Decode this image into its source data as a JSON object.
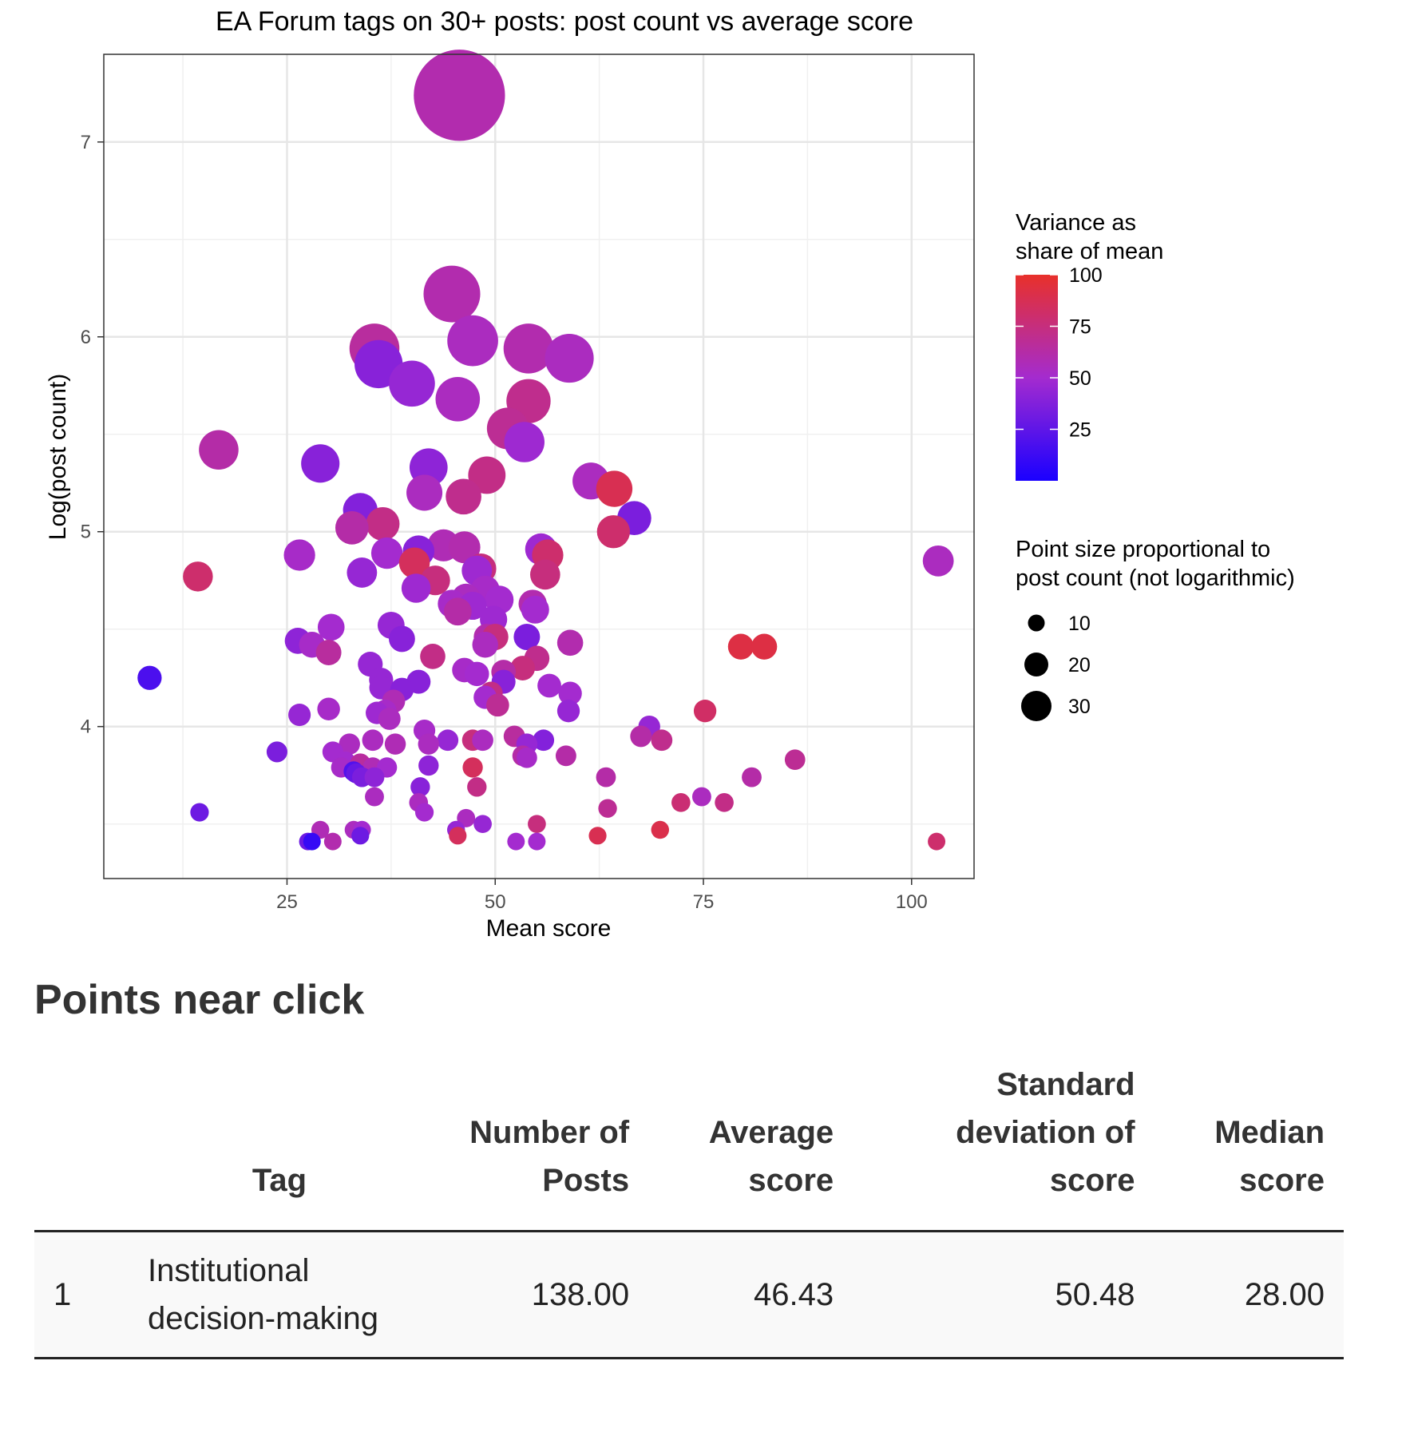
{
  "chart_data": {
    "type": "scatter",
    "title": "EA Forum tags on 30+ posts: post count vs average score",
    "xlabel": "Mean score",
    "ylabel": "Log(post count)",
    "xlim": [
      3,
      107.5
    ],
    "ylim": [
      3.22,
      7.45
    ],
    "xticks": [
      25,
      50,
      75,
      100
    ],
    "yticks": [
      4,
      5,
      6,
      7
    ],
    "grid": true,
    "color_legend": {
      "title": "Variance as share of mean",
      "ticks": [
        25,
        50,
        75,
        100
      ],
      "low_color": "#1a00ff",
      "mid_color": "#a42bcf",
      "high_color": "#e8302a",
      "range": [
        0,
        100
      ]
    },
    "size_legend": {
      "title": "Point size proportional to post count (not logarithmic)",
      "entries": [
        10,
        20,
        30
      ]
    },
    "points": [
      {
        "x": 45.7,
        "y": 7.24,
        "c": 60
      },
      {
        "x": 44.8,
        "y": 6.22,
        "c": 60
      },
      {
        "x": 47.3,
        "y": 5.98,
        "c": 55
      },
      {
        "x": 35.5,
        "y": 5.94,
        "c": 65
      },
      {
        "x": 54.0,
        "y": 5.94,
        "c": 60
      },
      {
        "x": 36.0,
        "y": 5.86,
        "c": 40
      },
      {
        "x": 58.9,
        "y": 5.89,
        "c": 55
      },
      {
        "x": 40.0,
        "y": 5.76,
        "c": 45
      },
      {
        "x": 45.5,
        "y": 5.68,
        "c": 55
      },
      {
        "x": 54.0,
        "y": 5.67,
        "c": 70
      },
      {
        "x": 51.5,
        "y": 5.53,
        "c": 68
      },
      {
        "x": 53.5,
        "y": 5.46,
        "c": 48
      },
      {
        "x": 16.8,
        "y": 5.42,
        "c": 62
      },
      {
        "x": 29.0,
        "y": 5.35,
        "c": 40
      },
      {
        "x": 42.0,
        "y": 5.33,
        "c": 42
      },
      {
        "x": 49.0,
        "y": 5.29,
        "c": 72
      },
      {
        "x": 61.5,
        "y": 5.26,
        "c": 55
      },
      {
        "x": 64.3,
        "y": 5.22,
        "c": 88
      },
      {
        "x": 41.5,
        "y": 5.2,
        "c": 55
      },
      {
        "x": 46.2,
        "y": 5.18,
        "c": 70
      },
      {
        "x": 33.8,
        "y": 5.11,
        "c": 38
      },
      {
        "x": 66.7,
        "y": 5.07,
        "c": 35
      },
      {
        "x": 36.5,
        "y": 5.04,
        "c": 72
      },
      {
        "x": 32.8,
        "y": 5.02,
        "c": 62
      },
      {
        "x": 64.2,
        "y": 5.0,
        "c": 80
      },
      {
        "x": 43.8,
        "y": 4.93,
        "c": 58
      },
      {
        "x": 46.3,
        "y": 4.92,
        "c": 60
      },
      {
        "x": 40.8,
        "y": 4.9,
        "c": 40
      },
      {
        "x": 55.5,
        "y": 4.91,
        "c": 48
      },
      {
        "x": 26.5,
        "y": 4.88,
        "c": 52
      },
      {
        "x": 37.0,
        "y": 4.89,
        "c": 50
      },
      {
        "x": 56.3,
        "y": 4.88,
        "c": 80
      },
      {
        "x": 103.2,
        "y": 4.85,
        "c": 55
      },
      {
        "x": 40.3,
        "y": 4.84,
        "c": 85
      },
      {
        "x": 48.3,
        "y": 4.81,
        "c": 75
      },
      {
        "x": 47.8,
        "y": 4.8,
        "c": 48
      },
      {
        "x": 14.3,
        "y": 4.77,
        "c": 80
      },
      {
        "x": 34.0,
        "y": 4.79,
        "c": 45
      },
      {
        "x": 56.0,
        "y": 4.78,
        "c": 75
      },
      {
        "x": 42.8,
        "y": 4.75,
        "c": 75
      },
      {
        "x": 40.5,
        "y": 4.71,
        "c": 48
      },
      {
        "x": 48.8,
        "y": 4.7,
        "c": 52
      },
      {
        "x": 46.5,
        "y": 4.66,
        "c": 55
      },
      {
        "x": 50.5,
        "y": 4.65,
        "c": 50
      },
      {
        "x": 44.8,
        "y": 4.63,
        "c": 52
      },
      {
        "x": 54.5,
        "y": 4.63,
        "c": 60
      },
      {
        "x": 47.3,
        "y": 4.62,
        "c": 48
      },
      {
        "x": 45.5,
        "y": 4.59,
        "c": 62
      },
      {
        "x": 54.8,
        "y": 4.6,
        "c": 50
      },
      {
        "x": 49.8,
        "y": 4.55,
        "c": 48
      },
      {
        "x": 37.5,
        "y": 4.52,
        "c": 45
      },
      {
        "x": 30.3,
        "y": 4.51,
        "c": 50
      },
      {
        "x": 49.0,
        "y": 4.46,
        "c": 60
      },
      {
        "x": 50.0,
        "y": 4.46,
        "c": 75
      },
      {
        "x": 38.8,
        "y": 4.45,
        "c": 40
      },
      {
        "x": 26.3,
        "y": 4.44,
        "c": 42
      },
      {
        "x": 53.8,
        "y": 4.46,
        "c": 35
      },
      {
        "x": 59.0,
        "y": 4.43,
        "c": 60
      },
      {
        "x": 28.0,
        "y": 4.42,
        "c": 52
      },
      {
        "x": 48.8,
        "y": 4.42,
        "c": 55
      },
      {
        "x": 79.5,
        "y": 4.41,
        "c": 92
      },
      {
        "x": 82.3,
        "y": 4.41,
        "c": 92
      },
      {
        "x": 30.0,
        "y": 4.38,
        "c": 65
      },
      {
        "x": 42.5,
        "y": 4.36,
        "c": 72
      },
      {
        "x": 55.0,
        "y": 4.35,
        "c": 70
      },
      {
        "x": 35.0,
        "y": 4.32,
        "c": 45
      },
      {
        "x": 53.3,
        "y": 4.3,
        "c": 75
      },
      {
        "x": 51.0,
        "y": 4.28,
        "c": 62
      },
      {
        "x": 46.3,
        "y": 4.29,
        "c": 52
      },
      {
        "x": 47.8,
        "y": 4.27,
        "c": 50
      },
      {
        "x": 8.5,
        "y": 4.25,
        "c": 18
      },
      {
        "x": 36.3,
        "y": 4.24,
        "c": 45
      },
      {
        "x": 40.8,
        "y": 4.23,
        "c": 40
      },
      {
        "x": 51.0,
        "y": 4.23,
        "c": 40
      },
      {
        "x": 56.5,
        "y": 4.21,
        "c": 50
      },
      {
        "x": 36.3,
        "y": 4.2,
        "c": 45
      },
      {
        "x": 38.8,
        "y": 4.19,
        "c": 40
      },
      {
        "x": 59.0,
        "y": 4.17,
        "c": 50
      },
      {
        "x": 49.5,
        "y": 4.17,
        "c": 72
      },
      {
        "x": 48.8,
        "y": 4.15,
        "c": 50
      },
      {
        "x": 37.8,
        "y": 4.13,
        "c": 58
      },
      {
        "x": 50.3,
        "y": 4.11,
        "c": 68
      },
      {
        "x": 30.0,
        "y": 4.09,
        "c": 52
      },
      {
        "x": 35.8,
        "y": 4.07,
        "c": 48
      },
      {
        "x": 36.8,
        "y": 4.08,
        "c": 52
      },
      {
        "x": 75.2,
        "y": 4.08,
        "c": 82
      },
      {
        "x": 58.8,
        "y": 4.08,
        "c": 45
      },
      {
        "x": 26.5,
        "y": 4.06,
        "c": 45
      },
      {
        "x": 37.3,
        "y": 4.04,
        "c": 55
      },
      {
        "x": 68.5,
        "y": 4.0,
        "c": 45
      },
      {
        "x": 41.5,
        "y": 3.98,
        "c": 52
      },
      {
        "x": 67.5,
        "y": 3.95,
        "c": 62
      },
      {
        "x": 52.3,
        "y": 3.95,
        "c": 65
      },
      {
        "x": 70.0,
        "y": 3.93,
        "c": 70
      },
      {
        "x": 35.3,
        "y": 3.93,
        "c": 55
      },
      {
        "x": 44.3,
        "y": 3.93,
        "c": 45
      },
      {
        "x": 47.3,
        "y": 3.93,
        "c": 75
      },
      {
        "x": 48.5,
        "y": 3.93,
        "c": 55
      },
      {
        "x": 55.8,
        "y": 3.93,
        "c": 38
      },
      {
        "x": 32.5,
        "y": 3.91,
        "c": 55
      },
      {
        "x": 38.0,
        "y": 3.91,
        "c": 58
      },
      {
        "x": 42.0,
        "y": 3.91,
        "c": 55
      },
      {
        "x": 53.8,
        "y": 3.91,
        "c": 45
      },
      {
        "x": 23.8,
        "y": 3.87,
        "c": 35
      },
      {
        "x": 30.5,
        "y": 3.87,
        "c": 50
      },
      {
        "x": 53.3,
        "y": 3.85,
        "c": 62
      },
      {
        "x": 58.5,
        "y": 3.85,
        "c": 62
      },
      {
        "x": 53.8,
        "y": 3.84,
        "c": 52
      },
      {
        "x": 86.0,
        "y": 3.83,
        "c": 68
      },
      {
        "x": 32.0,
        "y": 3.82,
        "c": 50
      },
      {
        "x": 33.8,
        "y": 3.81,
        "c": 65
      },
      {
        "x": 42.0,
        "y": 3.8,
        "c": 42
      },
      {
        "x": 31.5,
        "y": 3.79,
        "c": 52
      },
      {
        "x": 35.3,
        "y": 3.79,
        "c": 58
      },
      {
        "x": 37.0,
        "y": 3.79,
        "c": 50
      },
      {
        "x": 47.3,
        "y": 3.79,
        "c": 85
      },
      {
        "x": 33.0,
        "y": 3.77,
        "c": 20
      },
      {
        "x": 33.3,
        "y": 3.76,
        "c": 28
      },
      {
        "x": 34.0,
        "y": 3.74,
        "c": 35
      },
      {
        "x": 35.5,
        "y": 3.74,
        "c": 42
      },
      {
        "x": 63.3,
        "y": 3.74,
        "c": 62
      },
      {
        "x": 80.8,
        "y": 3.74,
        "c": 62
      },
      {
        "x": 47.8,
        "y": 3.69,
        "c": 72
      },
      {
        "x": 41.0,
        "y": 3.69,
        "c": 40
      },
      {
        "x": 74.8,
        "y": 3.64,
        "c": 55
      },
      {
        "x": 35.5,
        "y": 3.64,
        "c": 55
      },
      {
        "x": 40.8,
        "y": 3.61,
        "c": 55
      },
      {
        "x": 72.3,
        "y": 3.61,
        "c": 78
      },
      {
        "x": 77.5,
        "y": 3.61,
        "c": 72
      },
      {
        "x": 63.5,
        "y": 3.58,
        "c": 68
      },
      {
        "x": 14.5,
        "y": 3.56,
        "c": 30
      },
      {
        "x": 41.5,
        "y": 3.56,
        "c": 50
      },
      {
        "x": 46.5,
        "y": 3.53,
        "c": 55
      },
      {
        "x": 48.5,
        "y": 3.5,
        "c": 45
      },
      {
        "x": 55.0,
        "y": 3.5,
        "c": 75
      },
      {
        "x": 29.0,
        "y": 3.47,
        "c": 58
      },
      {
        "x": 33.0,
        "y": 3.47,
        "c": 55
      },
      {
        "x": 34.0,
        "y": 3.47,
        "c": 50
      },
      {
        "x": 45.3,
        "y": 3.47,
        "c": 45
      },
      {
        "x": 69.8,
        "y": 3.47,
        "c": 90
      },
      {
        "x": 33.8,
        "y": 3.44,
        "c": 30
      },
      {
        "x": 45.5,
        "y": 3.44,
        "c": 85
      },
      {
        "x": 62.3,
        "y": 3.44,
        "c": 88
      },
      {
        "x": 27.5,
        "y": 3.41,
        "c": 30
      },
      {
        "x": 28.0,
        "y": 3.41,
        "c": 10
      },
      {
        "x": 30.5,
        "y": 3.41,
        "c": 60
      },
      {
        "x": 52.5,
        "y": 3.41,
        "c": 50
      },
      {
        "x": 55.0,
        "y": 3.41,
        "c": 50
      },
      {
        "x": 103.0,
        "y": 3.41,
        "c": 80
      }
    ]
  },
  "section": {
    "title": "Points near click"
  },
  "table": {
    "headers": {
      "tag": "Tag",
      "posts": "Number of Posts",
      "avg": "Average score",
      "sd": "Standard deviation of score",
      "median": "Median score"
    },
    "rows": [
      {
        "idx": "1",
        "tag": "Institutional decision-making",
        "posts": "138.00",
        "avg": "46.43",
        "sd": "50.48",
        "median": "28.00"
      }
    ]
  }
}
